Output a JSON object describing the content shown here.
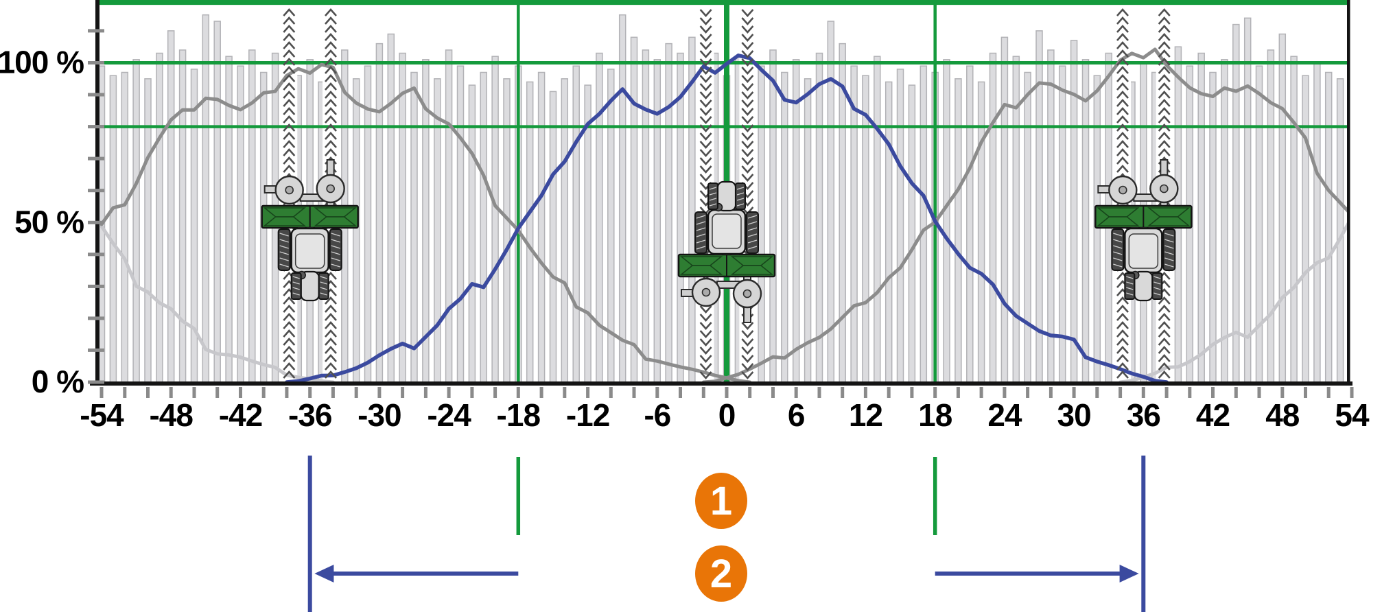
{
  "figure_title": "spreader-overlap-tramline-diagram",
  "colors": {
    "guide_green": "#149a3c",
    "implement_green": "#2e7d32",
    "implement_green_dark": "#17451b",
    "current_pass_blue": "#3b4a9f",
    "adjacent_pass_gray": "#8c8c8c",
    "outer_pass_lightgray": "#c7c7cb",
    "bar_fill": "#dcdcdf",
    "bar_stroke": "#b2b2b6",
    "axis_black": "#141414",
    "tick_gray": "#8a8a8a",
    "chevron_gray": "#4f4f4f",
    "tractor_body": "#d9d9d9",
    "tractor_dark": "#474747",
    "badge_orange": "#e97507",
    "badge_text": "#ffffff"
  },
  "chart_data": {
    "type": "line",
    "description": "Spread-pattern overlap of three adjacent spreader passes; bars show total applied rate, curves show single-pass distributions",
    "x_axis": {
      "min": -54,
      "max": 54,
      "minor_tick_step": 2,
      "label_step": 6,
      "tick_labels": [
        "-54",
        "-48",
        "-42",
        "-36",
        "-30",
        "-24",
        "-18",
        "-12",
        "-6",
        "0",
        "6",
        "12",
        "18",
        "24",
        "30",
        "36",
        "42",
        "48",
        "54"
      ]
    },
    "y_axis": {
      "tick_labels": [
        "0 %",
        "50 %",
        "100 %"
      ],
      "tick_values": [
        0,
        50,
        100
      ],
      "minor_tick_step_pct": 10,
      "plot_top_pct": 120
    },
    "green_guides": {
      "horizontal_pct": [
        119,
        100,
        80
      ],
      "vertical_positions": [
        -18,
        0,
        18
      ]
    },
    "spread_half_pattern_pct_by_distance": [
      100.3,
      102.3,
      100.8,
      96.5,
      92.5,
      90,
      88.5,
      90.5,
      93,
      94,
      91,
      87.5,
      85,
      80,
      74.5,
      67,
      61,
      56.5,
      52,
      46,
      40.5,
      35.5,
      33,
      29,
      26.5,
      22,
      19,
      16,
      14,
      13,
      11.5,
      9,
      7,
      5.5,
      4,
      2.5,
      1.5,
      0.5,
      0
    ],
    "series": [
      {
        "name": "outer-left-pass-spread",
        "color_key": "outer_pass_lightgray",
        "center": -72,
        "visible_range": [
          -54,
          -34
        ],
        "width": 5
      },
      {
        "name": "outer-right-pass-spread",
        "color_key": "outer_pass_lightgray",
        "center": 72,
        "visible_range": [
          34,
          54
        ],
        "width": 5
      },
      {
        "name": "left-pass-spread",
        "color_key": "adjacent_pass_gray",
        "center": -36,
        "visible_range": [
          -54,
          2
        ],
        "width": 5
      },
      {
        "name": "right-pass-spread",
        "color_key": "adjacent_pass_gray",
        "center": 36,
        "visible_range": [
          -2,
          54
        ],
        "width": 5
      },
      {
        "name": "current-pass-spread",
        "color_key": "current_pass_blue",
        "center": 0,
        "visible_range": [
          -38,
          38
        ],
        "width": 5.5
      }
    ],
    "total_coverage_bars": {
      "center_start": -54,
      "step": 1,
      "heights_pct": [
        99,
        96,
        97,
        101,
        95,
        103,
        110,
        104,
        98,
        115,
        113,
        102,
        99,
        104,
        97,
        103,
        110,
        96,
        101,
        94,
        98,
        104,
        95,
        99,
        106,
        109,
        103,
        97,
        101,
        95,
        104,
        99,
        93,
        97,
        102,
        95,
        99,
        94,
        97,
        91,
        95,
        99,
        93,
        103,
        98,
        115,
        108,
        104,
        101,
        106,
        103,
        108,
        98,
        103,
        96,
        102,
        107,
        99,
        104,
        97,
        101,
        95,
        103,
        113,
        106,
        99,
        96,
        102,
        94,
        98,
        93,
        99,
        97,
        101,
        95,
        99,
        94,
        103,
        108,
        102,
        97,
        110,
        104,
        99,
        107,
        101,
        96,
        103,
        98,
        94,
        100,
        97,
        109,
        105,
        99,
        103,
        97,
        101,
        112,
        114,
        99,
        104,
        109,
        102,
        96,
        100,
        97,
        95,
        99
      ]
    },
    "tractors": [
      {
        "position": -36,
        "heading": "down"
      },
      {
        "position": 0,
        "heading": "up"
      },
      {
        "position": 36,
        "heading": "down"
      }
    ],
    "wheel_track_offsets": [
      -1.8,
      1.8
    ]
  },
  "annotations": {
    "tramline_markers_blue": [
      -36,
      36
    ],
    "half_width_markers_green": [
      -18,
      18
    ],
    "arrows": [
      {
        "from": -18,
        "to": -34.3,
        "direction": "left"
      },
      {
        "from": 18,
        "to": 34.3,
        "direction": "right"
      }
    ],
    "badges": [
      {
        "label": "1"
      },
      {
        "label": "2"
      }
    ]
  }
}
